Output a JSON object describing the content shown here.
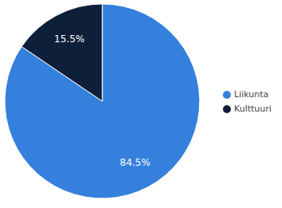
{
  "chart_data": {
    "type": "pie",
    "categories": [
      "Liikunta",
      "Kulttuuri"
    ],
    "values": [
      84.5,
      15.5
    ],
    "value_labels": [
      "84.5%",
      "15.5%"
    ],
    "colors": [
      "#3580dc",
      "#0e2039"
    ],
    "data_labels": true,
    "legend": "right"
  }
}
